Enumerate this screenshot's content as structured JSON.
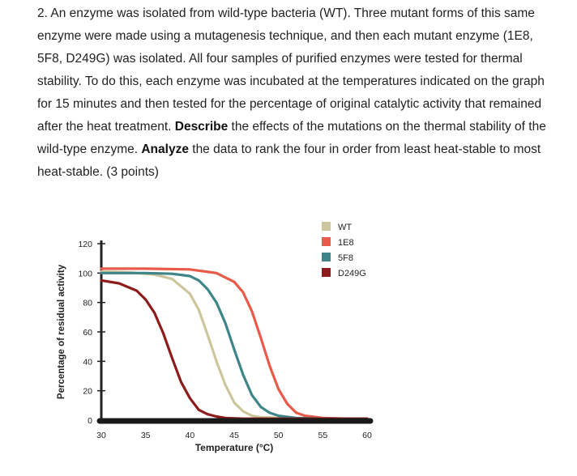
{
  "question": {
    "intro": "2. An enzyme was isolated from wild-type bacteria (WT). Three mutant forms of this same enzyme were made using a mutagenesis technique, and then each mutant enzyme (1E8, 5F8, D249G) was isolated. All four samples of purified enzymes were tested for thermal stability. To do this, each enzyme was incubated at the temperatures indicated on the graph for 15 minutes and then tested for the percentage of original catalytic activity that remained after the heat treatment.",
    "describe_word": "Describe",
    "describe_text": " the effects of the mutations on the thermal stability of the wild-type enzyme. ",
    "analyze_word": "Analyze",
    "analyze_text": " the data to rank the four in order from least heat-stable to most heat-stable. (3 points)"
  },
  "chart_data": {
    "type": "line",
    "xlabel": "Temperature (°C)",
    "ylabel": "Percentage of residual activity",
    "xlim": [
      30,
      60
    ],
    "ylim": [
      0,
      120
    ],
    "x_ticks": [
      30,
      35,
      40,
      45,
      50,
      55,
      60
    ],
    "y_ticks": [
      0,
      20,
      40,
      60,
      80,
      100,
      120
    ],
    "legend_position": "top-right",
    "series": [
      {
        "name": "WT",
        "color": "#cdc69c",
        "x": [
          30,
          33,
          36,
          38,
          40,
          41,
          42,
          43,
          44,
          45,
          46,
          47,
          48,
          50,
          55,
          60
        ],
        "y": [
          101,
          100.5,
          99,
          96,
          86,
          75,
          58,
          40,
          24,
          12,
          6,
          3,
          2,
          1.5,
          1,
          1
        ]
      },
      {
        "name": "1E8",
        "color": "#e85a4a",
        "x": [
          30,
          35,
          40,
          43,
          45,
          46,
          47,
          48,
          49,
          50,
          51,
          52,
          53,
          55,
          58,
          60
        ],
        "y": [
          103,
          103,
          102.5,
          100,
          94,
          87,
          74,
          56,
          37,
          21,
          11,
          5,
          3,
          1.5,
          1,
          1
        ]
      },
      {
        "name": "5F8",
        "color": "#3d8588",
        "x": [
          30,
          35,
          38,
          40,
          41,
          42,
          43,
          44,
          45,
          46,
          47,
          48,
          49,
          50,
          52,
          55,
          60
        ],
        "y": [
          100,
          100,
          99.5,
          98,
          95,
          89,
          80,
          66,
          48,
          31,
          17,
          9,
          5,
          3,
          1.5,
          1,
          1
        ]
      },
      {
        "name": "D249G",
        "color": "#8e1c1c",
        "x": [
          30,
          32,
          34,
          35,
          36,
          37,
          38,
          39,
          40,
          41,
          42,
          43,
          44,
          46,
          50,
          55,
          60
        ],
        "y": [
          95,
          93,
          88,
          82,
          73,
          59,
          42,
          26,
          15,
          7,
          4,
          2.5,
          1.5,
          1,
          1,
          1,
          1
        ]
      }
    ]
  }
}
